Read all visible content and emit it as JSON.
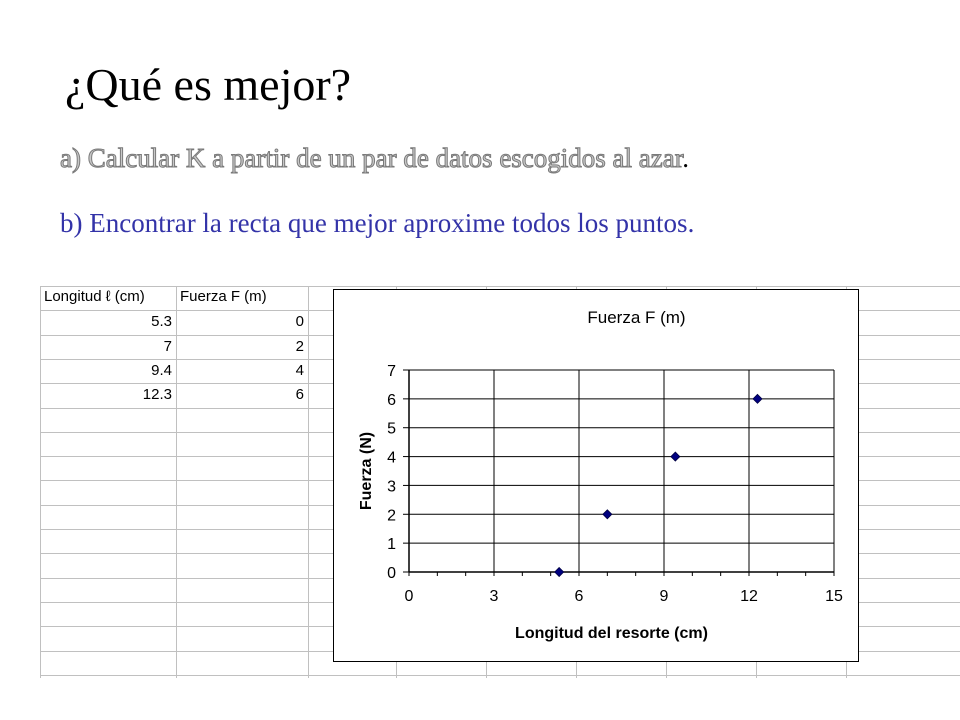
{
  "slide": {
    "title": "¿Qué es mejor?",
    "option_a": "a) Calcular K a partir de un par de datos escogidos al azar",
    "option_a_end": ".",
    "option_b": "b) Encontrar la recta que mejor aproxime todos los puntos."
  },
  "table": {
    "headers": [
      "Longitud ℓ (cm)",
      "Fuerza F (m)"
    ],
    "rows": [
      [
        "5.3",
        "0"
      ],
      [
        "7",
        "2"
      ],
      [
        "9.4",
        "4"
      ],
      [
        "12.3",
        "6"
      ]
    ]
  },
  "colors": {
    "marker": "#000080",
    "option_b_text": "#3333a8",
    "option_a_text": "#c8c8c8"
  },
  "chart_data": {
    "type": "scatter",
    "title": "Fuerza F (m)",
    "xlabel": "Longitud del resorte (cm)",
    "ylabel": "Fuerza (N)",
    "xlim": [
      0,
      15
    ],
    "ylim": [
      0,
      7
    ],
    "xticks": [
      0,
      3,
      6,
      9,
      12,
      15
    ],
    "yticks": [
      0,
      1,
      2,
      3,
      4,
      5,
      6,
      7
    ],
    "grid": true,
    "marker": "diamond",
    "series": [
      {
        "x": [
          5.3,
          7,
          9.4,
          12.3
        ],
        "y": [
          0,
          2,
          4,
          6
        ]
      }
    ]
  }
}
